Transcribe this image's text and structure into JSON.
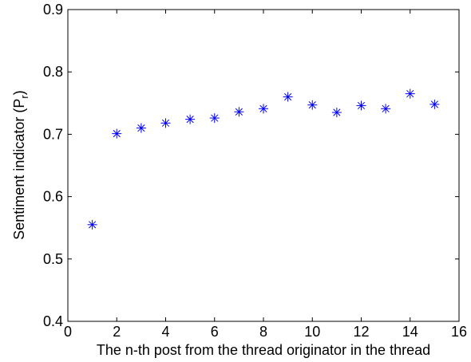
{
  "chart_data": {
    "type": "scatter",
    "xlabel": "The n-th post from the thread originator in the thread",
    "ylabel": "Sentiment indicator (P",
    "ylabel_subscript": "r",
    "ylabel_suffix": ")",
    "xlim": [
      0,
      16
    ],
    "ylim": [
      0.4,
      0.9
    ],
    "x_ticks": [
      "0",
      "2",
      "4",
      "6",
      "8",
      "10",
      "12",
      "14",
      "16"
    ],
    "y_ticks": [
      "0.4",
      "0.5",
      "0.6",
      "0.7",
      "0.8",
      "0.9"
    ],
    "marker": "asterisk",
    "marker_color": "#0000ff",
    "grid": false,
    "series": [
      {
        "x": [
          1,
          2,
          3,
          4,
          5,
          6,
          7,
          8,
          9,
          10,
          11,
          12,
          13,
          14,
          15
        ],
        "y": [
          0.555,
          0.701,
          0.71,
          0.718,
          0.724,
          0.726,
          0.736,
          0.741,
          0.76,
          0.747,
          0.735,
          0.746,
          0.741,
          0.765,
          0.748
        ]
      }
    ]
  }
}
